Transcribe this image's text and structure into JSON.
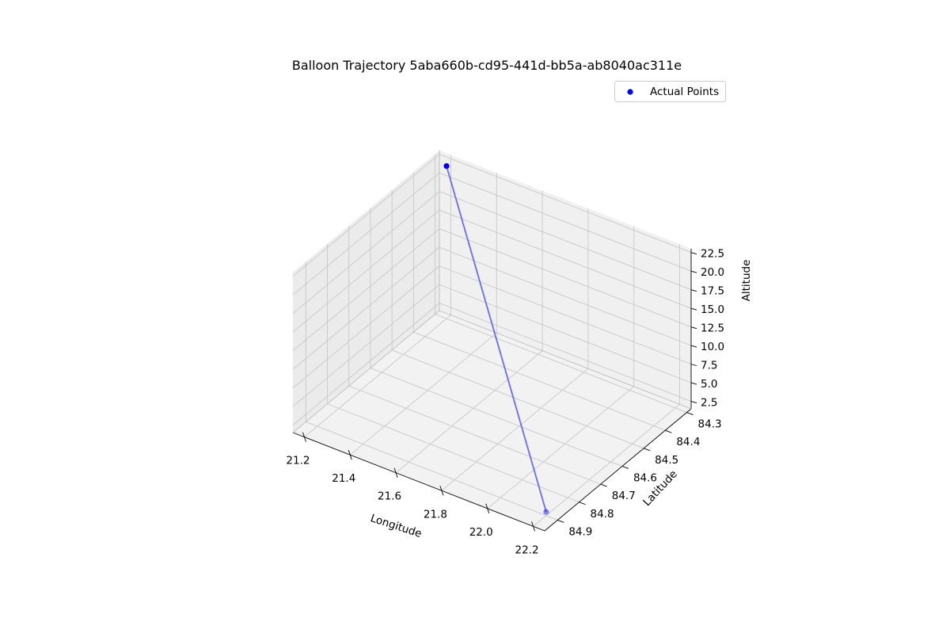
{
  "chart_data": {
    "type": "scatter",
    "projection": "3d",
    "title": "Balloon Trajectory 5aba660b-cd95-441d-bb5a-ab8040ac311e",
    "xlabel": "Longitude",
    "ylabel": "Latitude",
    "zlabel": "Altitude",
    "xticks": [
      "21.2",
      "21.4",
      "21.6",
      "21.8",
      "22.0",
      "22.2"
    ],
    "yticks": [
      "84.3",
      "84.4",
      "84.5",
      "84.6",
      "84.7",
      "84.8",
      "84.9"
    ],
    "zticks": [
      "2.5",
      "5.0",
      "7.5",
      "10.0",
      "12.5",
      "15.0",
      "17.5",
      "20.0",
      "22.5"
    ],
    "xlim": [
      21.15,
      22.25
    ],
    "ylim": [
      84.28,
      84.96
    ],
    "zlim": [
      1.5,
      23.0
    ],
    "grid": true,
    "legend": {
      "position": "top-right",
      "entries": [
        "Actual Points"
      ]
    },
    "series": [
      {
        "name": "Actual Points",
        "color": "#0000ff",
        "line_color": "#6b6bf5",
        "points": [
          {
            "x": 21.2,
            "y": 84.3,
            "z": 22.0
          },
          {
            "x": 22.2,
            "y": 84.9,
            "z": 2.0
          }
        ]
      }
    ]
  }
}
